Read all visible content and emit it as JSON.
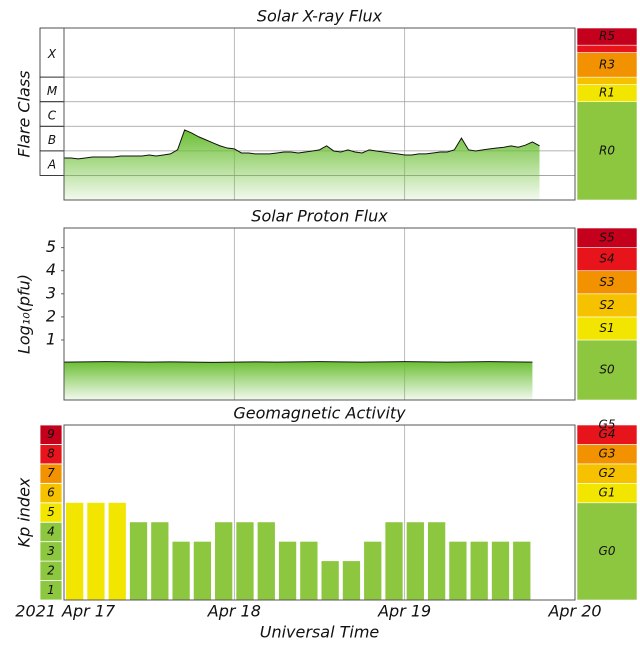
{
  "chart_data": [
    {
      "type": "area",
      "title": "Solar X-ray Flux",
      "ylabel": "Flare Class",
      "log": true,
      "ylim": [
        1e-09,
        0.01
      ],
      "yticks": [
        {
          "value": 1e-08,
          "label": "A"
        },
        {
          "value": 1e-07,
          "label": "B"
        },
        {
          "value": 1e-06,
          "label": "C"
        },
        {
          "value": 1e-05,
          "label": "M"
        },
        {
          "value": 0.0001,
          "label": "X"
        }
      ],
      "xlim": [
        0,
        72
      ],
      "xticks": [
        0,
        24,
        48,
        72
      ],
      "color": "#6cbf35",
      "x": [
        0,
        1,
        2,
        3,
        4,
        5,
        6,
        7,
        8,
        9,
        10,
        11,
        12,
        13,
        14,
        15,
        16,
        17,
        18,
        19,
        20,
        21,
        22,
        23,
        24,
        25,
        26,
        27,
        28,
        29,
        30,
        31,
        32,
        33,
        34,
        35,
        36,
        37,
        38,
        39,
        40,
        41,
        42,
        43,
        44,
        45,
        46,
        47,
        48,
        49,
        50,
        51,
        52,
        53,
        54,
        55,
        56,
        57,
        58,
        59,
        60,
        61,
        62,
        63,
        64,
        65,
        66,
        67
      ],
      "values": [
        5.1e-08,
        5.1e-08,
        4.7e-08,
        5.1e-08,
        5.6e-08,
        5.6e-08,
        5.6e-08,
        5.6e-08,
        6.2e-08,
        6.2e-08,
        6.2e-08,
        6.2e-08,
        6.8e-08,
        6.2e-08,
        6.8e-08,
        7.5e-08,
        1.1e-07,
        7.1e-07,
        5.3e-07,
        3.7e-07,
        2.8e-07,
        2.1e-07,
        1.6e-07,
        1.3e-07,
        1.2e-07,
        8.2e-08,
        8.2e-08,
        7.5e-08,
        7.5e-08,
        7.5e-08,
        8.2e-08,
        9e-08,
        9e-08,
        8.2e-08,
        9e-08,
        9.9e-08,
        1.1e-07,
        1.6e-07,
        9.9e-08,
        9e-08,
        1.1e-07,
        9e-08,
        8.2e-08,
        1.1e-07,
        9.9e-08,
        9e-08,
        8.2e-08,
        7.5e-08,
        6.8e-08,
        6.8e-08,
        7.5e-08,
        7.5e-08,
        8.2e-08,
        9e-08,
        9e-08,
        1.1e-07,
        3.3e-07,
        1.1e-07,
        9.9e-08,
        1.1e-07,
        1.2e-07,
        1.3e-07,
        1.4e-07,
        1.6e-07,
        1.4e-07,
        1.7e-07,
        2.3e-07,
        1.6e-07
      ],
      "scale": [
        {
          "label": "R0",
          "color": "#8dc63f"
        },
        {
          "label": "R1",
          "color": "#f2e600",
          "min": 1e-05
        },
        {
          "label": null,
          "color": "#f6c200",
          "min": 5e-05
        },
        {
          "label": "R3",
          "color": "#f39200",
          "min": 0.0001
        },
        {
          "label": null,
          "color": "#e8141c",
          "min": 0.001
        },
        {
          "label": "R5",
          "color": "#c4001c",
          "min": 0.002
        }
      ]
    },
    {
      "type": "area",
      "title": "Solar Proton Flux",
      "ylabel": "Log₁₀(pfu)",
      "ylim": [
        -1.6,
        5.85
      ],
      "yticks": [
        1,
        2,
        3,
        4,
        5
      ],
      "xlim": [
        0,
        72
      ],
      "xticks": [
        0,
        24,
        48,
        72
      ],
      "color": "#6cbf35",
      "x": [
        0,
        3,
        6,
        9,
        12,
        15,
        18,
        21,
        24,
        27,
        30,
        33,
        36,
        39,
        42,
        45,
        48,
        51,
        54,
        57,
        60,
        63,
        66
      ],
      "values": [
        0.04,
        0.05,
        0.06,
        0.05,
        0.04,
        0.05,
        0.04,
        0.03,
        0.04,
        0.05,
        0.04,
        0.05,
        0.06,
        0.05,
        0.04,
        0.05,
        0.06,
        0.05,
        0.04,
        0.05,
        0.06,
        0.05,
        0.04
      ],
      "scale": [
        {
          "label": "S0",
          "color": "#8dc63f"
        },
        {
          "label": "S1",
          "color": "#f2e600",
          "min": 1
        },
        {
          "label": "S2",
          "color": "#f6c200",
          "min": 2
        },
        {
          "label": "S3",
          "color": "#f39200",
          "min": 3
        },
        {
          "label": "S4",
          "color": "#e8141c",
          "min": 4
        },
        {
          "label": "S5",
          "color": "#c4001c",
          "min": 5
        }
      ]
    },
    {
      "type": "bar",
      "title": "Geomagnetic Activity",
      "ylabel": "Kp index",
      "xlabel": "Universal Time",
      "year": "2021",
      "ylim": [
        0,
        9
      ],
      "yticks": [
        1,
        2,
        3,
        4,
        5,
        6,
        7,
        8,
        9
      ],
      "xlim": [
        0,
        72
      ],
      "xticks": [
        {
          "value": 0,
          "label": "Apr 17"
        },
        {
          "value": 24,
          "label": "Apr 18"
        },
        {
          "value": 48,
          "label": "Apr 19"
        },
        {
          "value": 72,
          "label": "Apr 20"
        }
      ],
      "x": [
        0,
        3,
        6,
        9,
        12,
        15,
        18,
        21,
        24,
        27,
        30,
        33,
        36,
        39,
        42,
        45,
        48,
        51,
        54,
        57,
        60,
        63
      ],
      "values": [
        5,
        5,
        5,
        4,
        4,
        3,
        3,
        4,
        4,
        4,
        3,
        3,
        2,
        2,
        3,
        4,
        4,
        4,
        3,
        3,
        3,
        3
      ],
      "scale": [
        {
          "label": "G0",
          "color": "#8dc63f"
        },
        {
          "label": "G1",
          "color": "#f2e600",
          "min": 5
        },
        {
          "label": "G2",
          "color": "#f6c200",
          "min": 6
        },
        {
          "label": "G3",
          "color": "#f39200",
          "min": 7
        },
        {
          "label": "G4",
          "color": "#e8141c",
          "min": 8
        },
        {
          "label": "G5",
          "color": "#c4001c",
          "min": 9
        }
      ]
    }
  ]
}
